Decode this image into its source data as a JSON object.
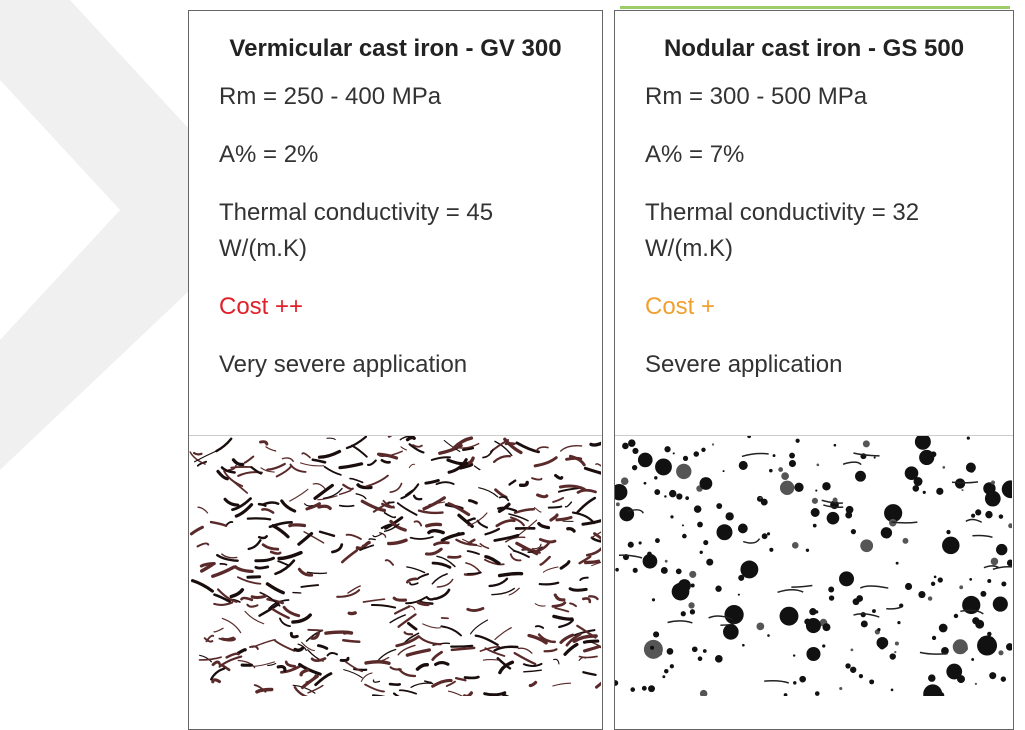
{
  "cards": [
    {
      "title": "Vermicular cast iron - GV 300",
      "strength": "Rm = 250 - 400 MPa",
      "elongation": "A% = 2%",
      "conductivity": "Thermal conductivity = 45 W/(m.K)",
      "cost": "Cost ++",
      "application": "Very severe application"
    },
    {
      "title": "Nodular cast iron - GS 500",
      "strength": "Rm = 300 - 500 MPa",
      "elongation": "A% = 7%",
      "conductivity": "Thermal conductivity = 32 W/(m.K)",
      "cost": "Cost +",
      "application": "Severe application"
    }
  ]
}
